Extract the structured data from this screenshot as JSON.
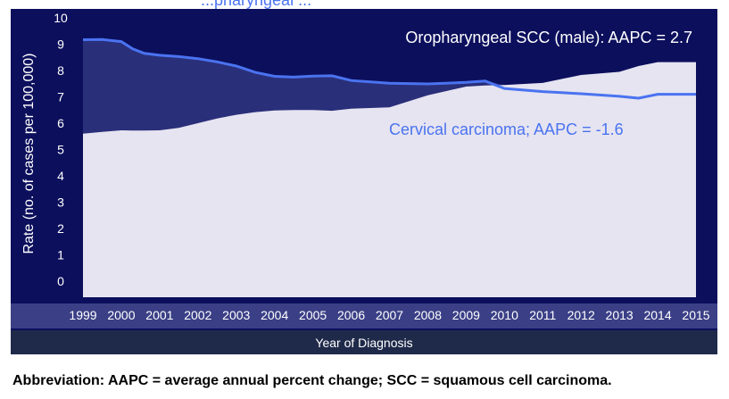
{
  "chart_data": {
    "type": "area",
    "xlabel": "Year of Diagnosis",
    "ylabel": "Rate (no. of cases per 100,000)",
    "ylim": [
      0,
      10
    ],
    "y_ticks": [
      "0",
      "1",
      "2",
      "3",
      "4",
      "5",
      "6",
      "7",
      "8",
      "9",
      "10"
    ],
    "x": [
      1999,
      1999.5,
      2000,
      2000.3,
      2000.6,
      2001,
      2001.5,
      2002,
      2002.5,
      2003,
      2003.5,
      2004,
      2004.5,
      2005,
      2005.5,
      2006,
      2007,
      2008,
      2009,
      2009.5,
      2010,
      2011,
      2012,
      2013,
      2013.5,
      2014,
      2015
    ],
    "x_ticks": [
      "1999",
      "2000",
      "2001",
      "2002",
      "2003",
      "2004",
      "2005",
      "2006",
      "2007",
      "2008",
      "2009",
      "2010",
      "2011",
      "2012",
      "2013",
      "2014",
      "2015"
    ],
    "series": [
      {
        "name": "Oropharyngeal SCC (male)",
        "annotation": "Oropharyngeal SCC (male): AAPC = 2.7",
        "color": "#e6e4f1",
        "values": [
          5.6,
          5.67,
          5.73,
          5.72,
          5.72,
          5.73,
          5.82,
          6.0,
          6.18,
          6.32,
          6.42,
          6.48,
          6.5,
          6.5,
          6.47,
          6.55,
          6.6,
          7.06,
          7.39,
          7.43,
          7.45,
          7.53,
          7.83,
          7.95,
          8.17,
          8.32,
          8.32
        ]
      },
      {
        "name": "Cervical carcinoma",
        "annotation": "Cervical carcinoma; AAPC = -1.6",
        "color": "#4a73f0",
        "values": [
          9.17,
          9.18,
          9.1,
          8.82,
          8.65,
          8.58,
          8.53,
          8.45,
          8.33,
          8.17,
          7.93,
          7.78,
          7.75,
          7.79,
          7.8,
          7.62,
          7.52,
          7.49,
          7.55,
          7.6,
          7.32,
          7.2,
          7.12,
          7.02,
          6.95,
          7.1,
          7.1
        ]
      }
    ],
    "fill_between_color": "#2a2f7a",
    "title_fragment": "...pharyngeal ..."
  },
  "footnote": "Abbreviation: AAPC = average annual percent change; SCC = squamous cell carcinoma."
}
